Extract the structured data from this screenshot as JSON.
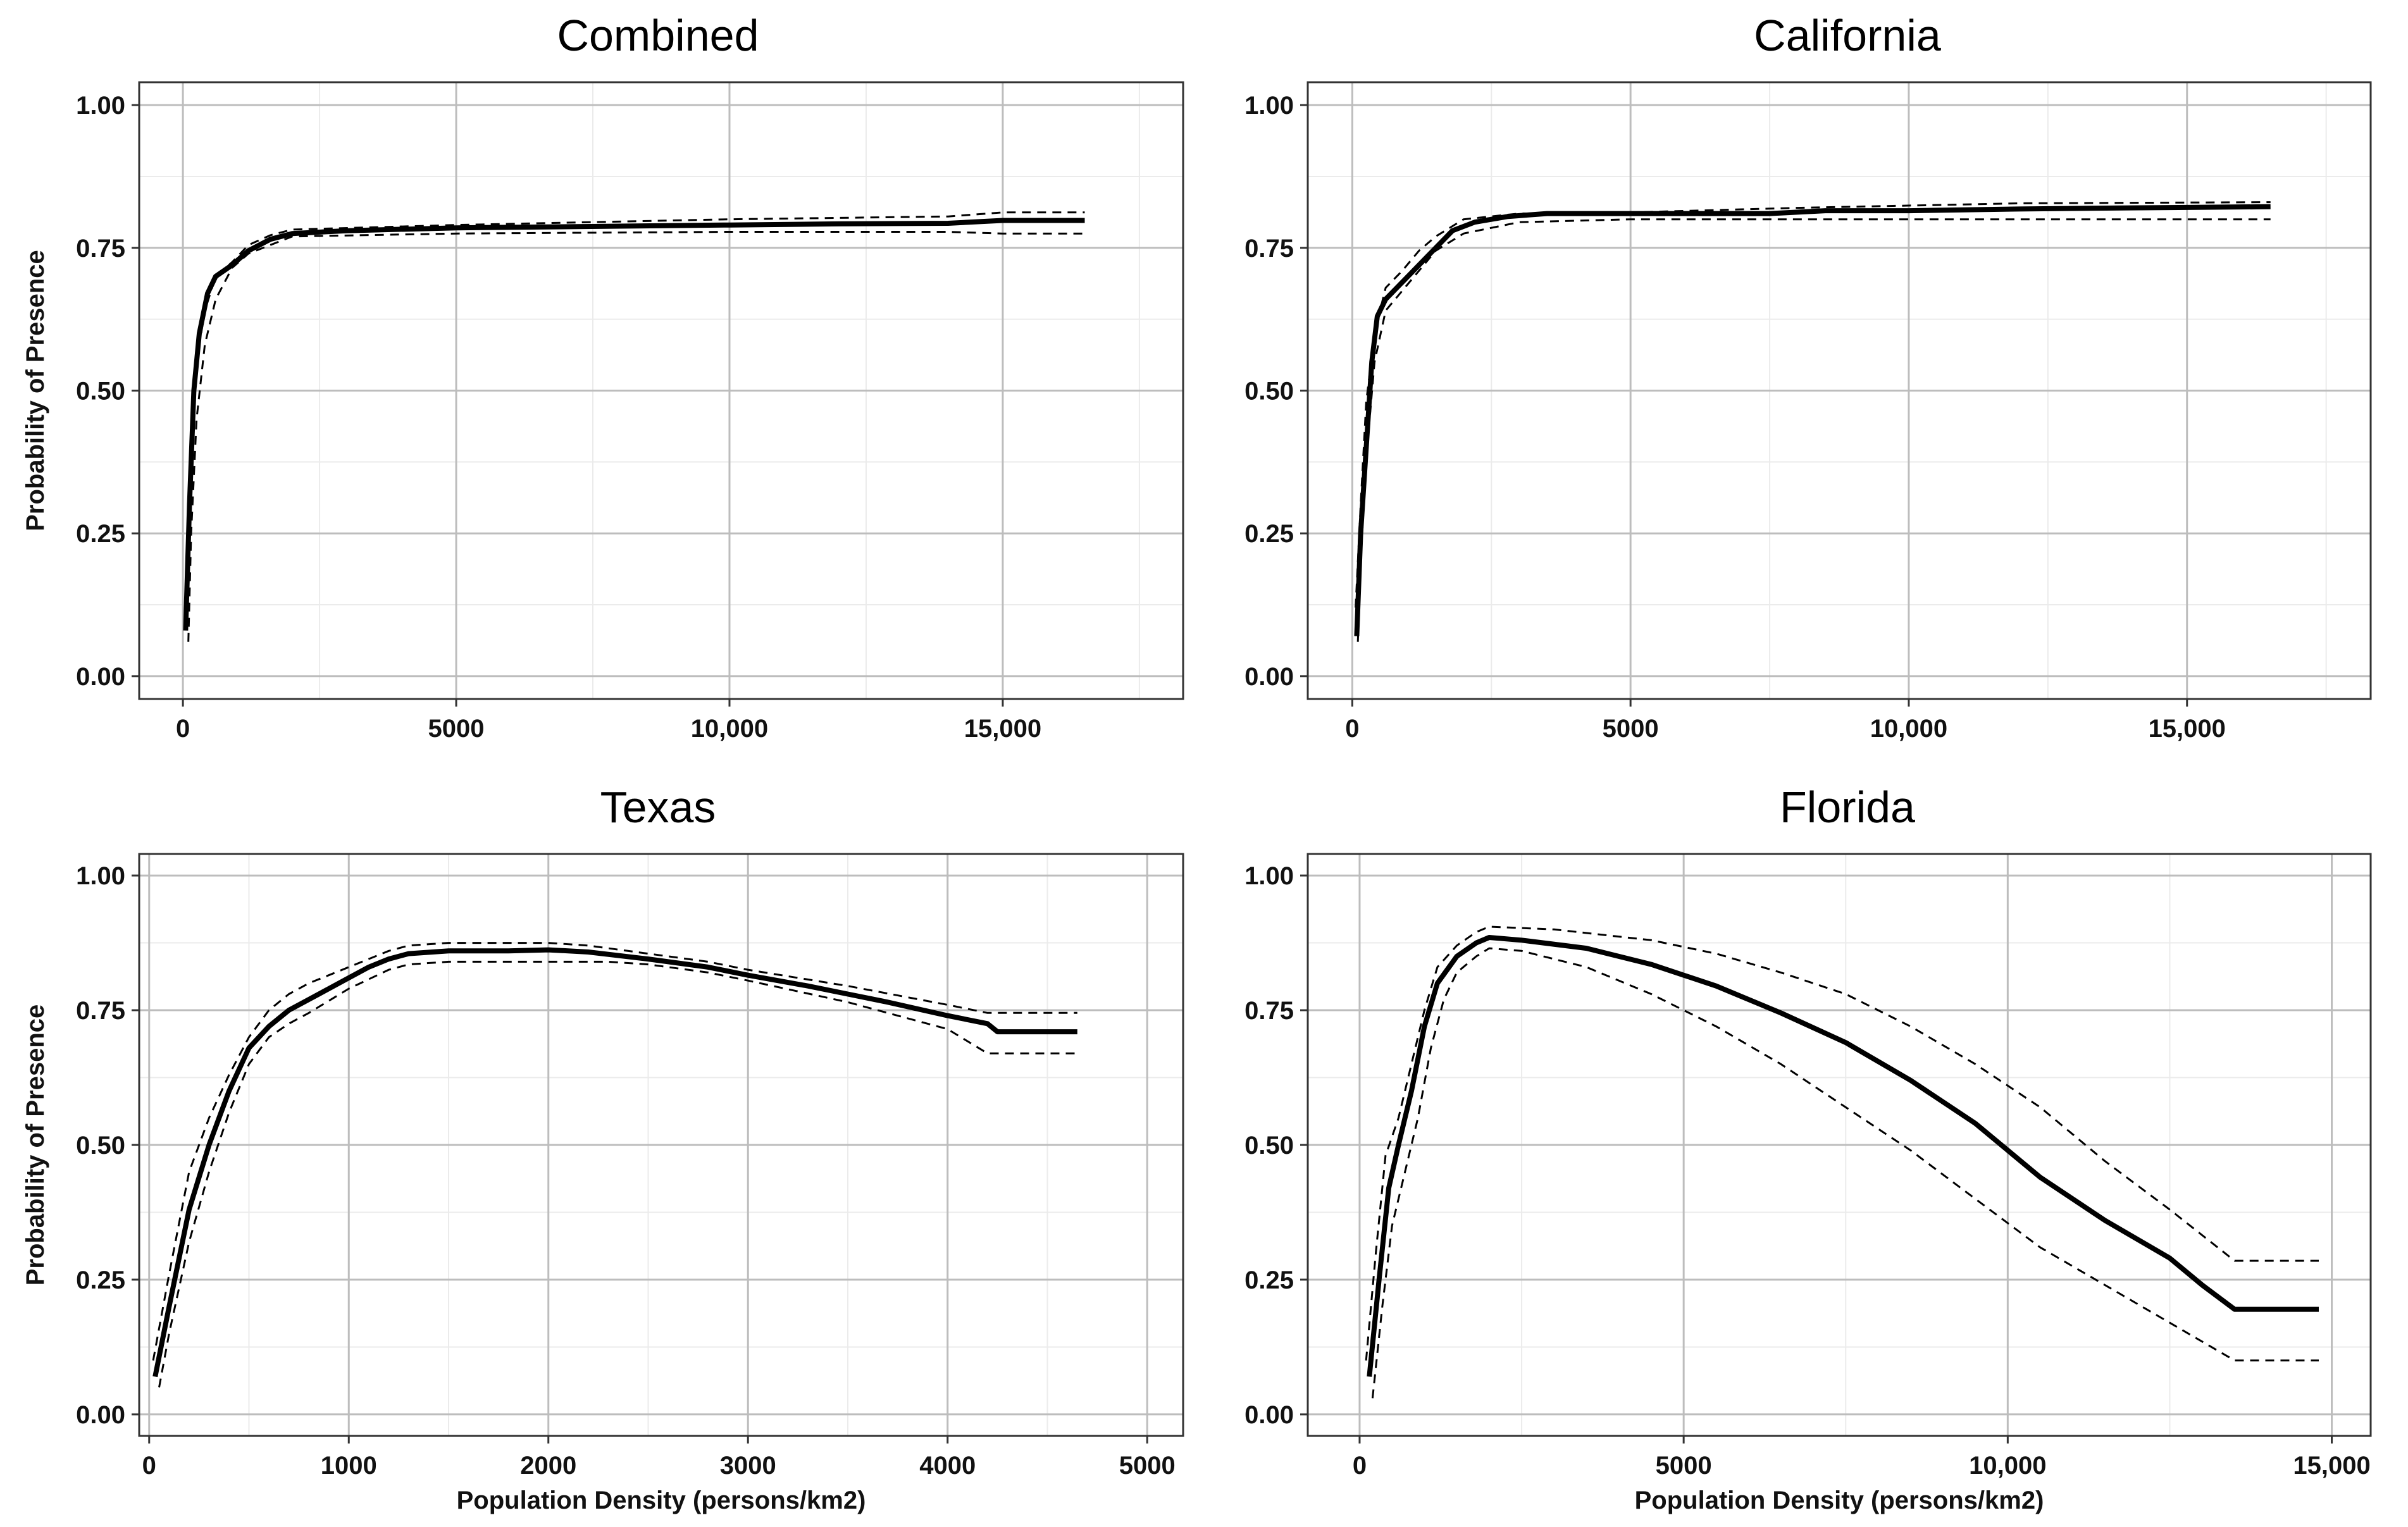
{
  "chart_data": [
    {
      "type": "line",
      "title": "Combined",
      "xlabel": "",
      "ylabel": "Probability of Presence",
      "xlim": [
        -800,
        18300
      ],
      "ylim": [
        -0.04,
        1.04
      ],
      "x_ticks": [
        0,
        5000,
        10000,
        15000
      ],
      "x_tick_labels": [
        "0",
        "5000",
        "10,000",
        "15,000"
      ],
      "y_ticks": [
        0,
        0.25,
        0.5,
        0.75,
        1.0
      ],
      "y_tick_labels": [
        "0.00",
        "0.25",
        "0.50",
        "0.75",
        "1.00"
      ],
      "series": [
        {
          "name": "estimate",
          "style": "solid",
          "x": [
            50,
            120,
            200,
            300,
            450,
            600,
            900,
            1200,
            1600,
            2000,
            3000,
            5000,
            8000,
            10000,
            12000,
            14000,
            15000,
            16500
          ],
          "y": [
            0.08,
            0.3,
            0.5,
            0.6,
            0.67,
            0.7,
            0.72,
            0.745,
            0.765,
            0.775,
            0.78,
            0.785,
            0.788,
            0.79,
            0.792,
            0.793,
            0.798,
            0.798
          ]
        },
        {
          "name": "upper bound",
          "style": "dashed",
          "x": [
            70,
            150,
            250,
            400,
            600,
            900,
            1200,
            1600,
            2000,
            5000,
            10000,
            14000,
            15000,
            16500
          ],
          "y": [
            0.15,
            0.4,
            0.55,
            0.64,
            0.7,
            0.725,
            0.755,
            0.772,
            0.782,
            0.79,
            0.8,
            0.805,
            0.812,
            0.812
          ]
        },
        {
          "name": "lower bound",
          "style": "dashed",
          "x": [
            100,
            150,
            250,
            400,
            600,
            900,
            1200,
            1600,
            2000,
            5000,
            10000,
            14000,
            15000,
            16500
          ],
          "y": [
            0.06,
            0.25,
            0.45,
            0.58,
            0.66,
            0.715,
            0.74,
            0.755,
            0.77,
            0.775,
            0.778,
            0.778,
            0.775,
            0.775
          ]
        }
      ]
    },
    {
      "type": "line",
      "title": "California",
      "xlabel": "",
      "ylabel": "",
      "xlim": [
        -800,
        18300
      ],
      "ylim": [
        -0.04,
        1.04
      ],
      "x_ticks": [
        0,
        5000,
        10000,
        15000
      ],
      "x_tick_labels": [
        "0",
        "5000",
        "10,000",
        "15,000"
      ],
      "y_ticks": [
        0,
        0.25,
        0.5,
        0.75,
        1.0
      ],
      "y_tick_labels": [
        "0.00",
        "0.25",
        "0.50",
        "0.75",
        "1.00"
      ],
      "series": [
        {
          "name": "estimate",
          "style": "solid",
          "x": [
            80,
            150,
            250,
            350,
            450,
            600,
            900,
            1200,
            1500,
            1800,
            2200,
            2800,
            3500,
            5000,
            7500,
            8500,
            10000,
            12000,
            14000,
            16500
          ],
          "y": [
            0.07,
            0.25,
            0.4,
            0.55,
            0.63,
            0.66,
            0.69,
            0.72,
            0.75,
            0.78,
            0.795,
            0.805,
            0.81,
            0.81,
            0.81,
            0.815,
            0.815,
            0.818,
            0.82,
            0.822
          ]
        },
        {
          "name": "upper bound",
          "style": "dashed",
          "x": [
            60,
            150,
            250,
            400,
            600,
            900,
            1200,
            1500,
            2000,
            3000,
            5000,
            8000,
            12000,
            16500
          ],
          "y": [
            0.12,
            0.3,
            0.48,
            0.6,
            0.68,
            0.71,
            0.745,
            0.77,
            0.8,
            0.81,
            0.812,
            0.82,
            0.828,
            0.83
          ]
        },
        {
          "name": "lower bound",
          "style": "dashed",
          "x": [
            100,
            150,
            250,
            400,
            600,
            900,
            1200,
            1500,
            2000,
            3000,
            5000,
            8000,
            12000,
            16500
          ],
          "y": [
            0.06,
            0.2,
            0.38,
            0.55,
            0.64,
            0.675,
            0.71,
            0.745,
            0.775,
            0.795,
            0.8,
            0.8,
            0.8,
            0.8
          ]
        }
      ]
    },
    {
      "type": "line",
      "title": "Texas",
      "xlabel": "Population Density (persons/km2)",
      "ylabel": "Probability of Presence",
      "xlim": [
        -50,
        5180
      ],
      "ylim": [
        -0.04,
        1.04
      ],
      "x_ticks": [
        0,
        1000,
        2000,
        3000,
        4000,
        5000
      ],
      "x_tick_labels": [
        "0",
        "1000",
        "2000",
        "3000",
        "4000",
        "5000"
      ],
      "y_ticks": [
        0,
        0.25,
        0.5,
        0.75,
        1.0
      ],
      "y_tick_labels": [
        "0.00",
        "0.25",
        "0.50",
        "0.75",
        "1.00"
      ],
      "series": [
        {
          "name": "estimate",
          "style": "solid",
          "x": [
            30,
            100,
            200,
            300,
            400,
            500,
            600,
            700,
            800,
            900,
            1000,
            1100,
            1200,
            1300,
            1500,
            1800,
            2000,
            2200,
            2500,
            2800,
            3000,
            3300,
            3500,
            3700,
            4000,
            4200,
            4250,
            4650
          ],
          "y": [
            0.07,
            0.2,
            0.38,
            0.5,
            0.6,
            0.68,
            0.72,
            0.75,
            0.77,
            0.79,
            0.81,
            0.83,
            0.845,
            0.855,
            0.86,
            0.86,
            0.862,
            0.858,
            0.845,
            0.83,
            0.815,
            0.795,
            0.78,
            0.765,
            0.74,
            0.725,
            0.71,
            0.71
          ]
        },
        {
          "name": "upper bound",
          "style": "dashed",
          "x": [
            20,
            100,
            200,
            300,
            400,
            500,
            600,
            700,
            800,
            1000,
            1200,
            1300,
            1500,
            2000,
            2200,
            2500,
            2800,
            3000,
            3500,
            4000,
            4200,
            4650
          ],
          "y": [
            0.1,
            0.26,
            0.45,
            0.55,
            0.63,
            0.7,
            0.75,
            0.78,
            0.8,
            0.83,
            0.86,
            0.87,
            0.875,
            0.875,
            0.87,
            0.855,
            0.84,
            0.825,
            0.795,
            0.76,
            0.745,
            0.745
          ]
        },
        {
          "name": "lower bound",
          "style": "dashed",
          "x": [
            50,
            100,
            200,
            300,
            400,
            500,
            600,
            700,
            800,
            1000,
            1200,
            1300,
            1500,
            2000,
            2300,
            2500,
            2800,
            3000,
            3500,
            4000,
            4200,
            4650
          ],
          "y": [
            0.05,
            0.15,
            0.32,
            0.45,
            0.56,
            0.65,
            0.7,
            0.725,
            0.745,
            0.79,
            0.825,
            0.835,
            0.84,
            0.84,
            0.84,
            0.835,
            0.82,
            0.805,
            0.765,
            0.715,
            0.67,
            0.67
          ]
        }
      ]
    },
    {
      "type": "line",
      "title": "Florida",
      "xlabel": "Population Density (persons/km2)",
      "ylabel": "",
      "xlim": [
        -800,
        15600
      ],
      "ylim": [
        -0.04,
        1.04
      ],
      "x_ticks": [
        0,
        5000,
        10000,
        15000
      ],
      "x_tick_labels": [
        "0",
        "5000",
        "10,000",
        "15,000"
      ],
      "y_ticks": [
        0,
        0.25,
        0.5,
        0.75,
        1.0
      ],
      "y_tick_labels": [
        "0.00",
        "0.25",
        "0.50",
        "0.75",
        "1.00"
      ],
      "series": [
        {
          "name": "estimate",
          "style": "solid",
          "x": [
            150,
            300,
            450,
            600,
            800,
            1000,
            1200,
            1500,
            1800,
            2000,
            2500,
            3500,
            4500,
            5500,
            6500,
            7500,
            8500,
            9500,
            10500,
            11500,
            12500,
            13000,
            13500,
            14800
          ],
          "y": [
            0.07,
            0.25,
            0.42,
            0.5,
            0.6,
            0.72,
            0.8,
            0.85,
            0.875,
            0.885,
            0.88,
            0.865,
            0.835,
            0.795,
            0.745,
            0.69,
            0.62,
            0.54,
            0.44,
            0.36,
            0.29,
            0.24,
            0.195,
            0.195
          ]
        },
        {
          "name": "upper bound",
          "style": "dashed",
          "x": [
            100,
            250,
            400,
            600,
            800,
            1000,
            1200,
            1500,
            1800,
            2000,
            3000,
            4500,
            5500,
            6500,
            7500,
            8500,
            9500,
            10500,
            11500,
            12500,
            13500,
            14800
          ],
          "y": [
            0.1,
            0.3,
            0.48,
            0.55,
            0.65,
            0.75,
            0.83,
            0.87,
            0.895,
            0.905,
            0.9,
            0.88,
            0.855,
            0.82,
            0.78,
            0.72,
            0.65,
            0.57,
            0.47,
            0.38,
            0.285,
            0.285
          ]
        },
        {
          "name": "lower bound",
          "style": "dashed",
          "x": [
            200,
            350,
            500,
            700,
            900,
            1100,
            1300,
            1500,
            1800,
            2000,
            2500,
            3500,
            4500,
            5500,
            6500,
            7500,
            8500,
            9500,
            10500,
            11500,
            12500,
            13500,
            14800
          ],
          "y": [
            0.03,
            0.2,
            0.35,
            0.45,
            0.55,
            0.68,
            0.77,
            0.82,
            0.85,
            0.865,
            0.86,
            0.83,
            0.78,
            0.72,
            0.65,
            0.57,
            0.49,
            0.4,
            0.31,
            0.24,
            0.17,
            0.1,
            0.1
          ]
        }
      ]
    }
  ]
}
